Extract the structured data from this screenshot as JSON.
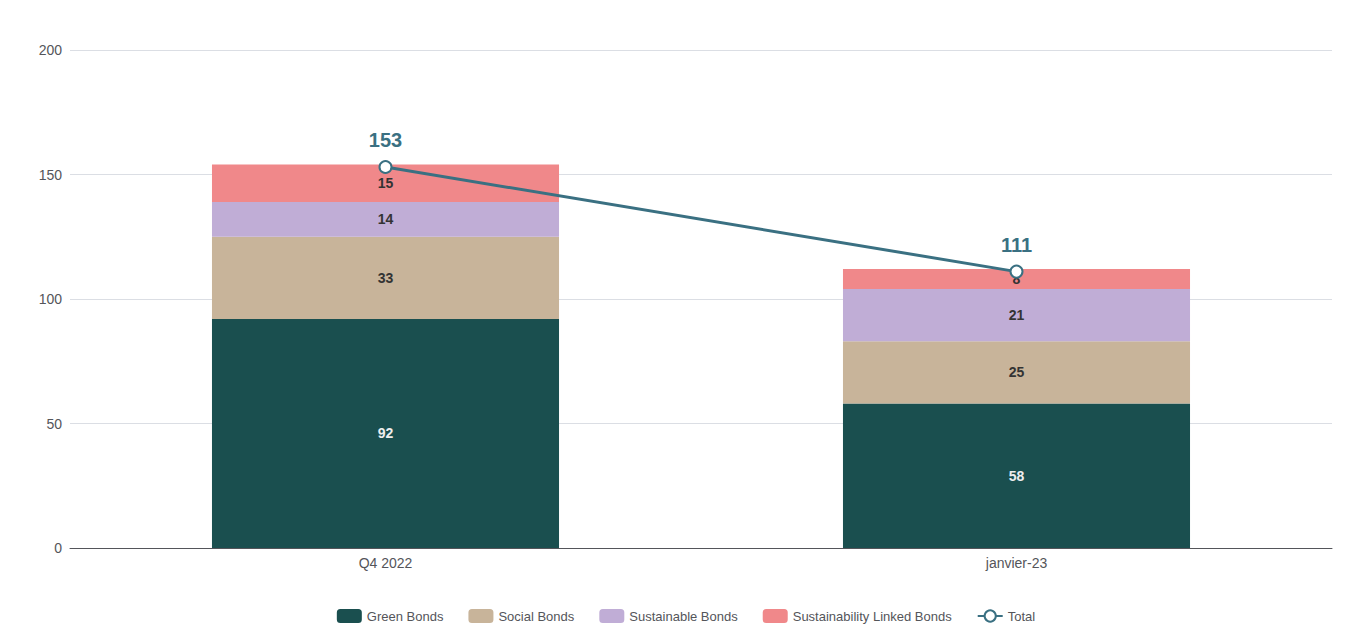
{
  "chart_data": {
    "type": "bar",
    "stacked": true,
    "data_labels": true,
    "grid": true,
    "legend": "bottom",
    "categories": [
      "Q4 2022",
      "janvier-23"
    ],
    "series": [
      {
        "name": "Green Bonds",
        "color": "#1a4f4f",
        "values": [
          92,
          58
        ]
      },
      {
        "name": "Social Bonds",
        "color": "#c8b49a",
        "values": [
          33,
          25
        ]
      },
      {
        "name": "Sustainable Bonds",
        "color": "#c0add6",
        "values": [
          14,
          21
        ]
      },
      {
        "name": "Sustainability Linked Bonds",
        "color": "#f0888a",
        "values": [
          15,
          8
        ]
      },
      {
        "name": "Total",
        "type": "line",
        "color": "#3a7082",
        "marker": "circle",
        "line_style": "solid",
        "values": [
          153,
          111
        ]
      }
    ],
    "ylim": [
      0,
      200
    ],
    "yticks": [
      0,
      50,
      100,
      150,
      200
    ]
  }
}
